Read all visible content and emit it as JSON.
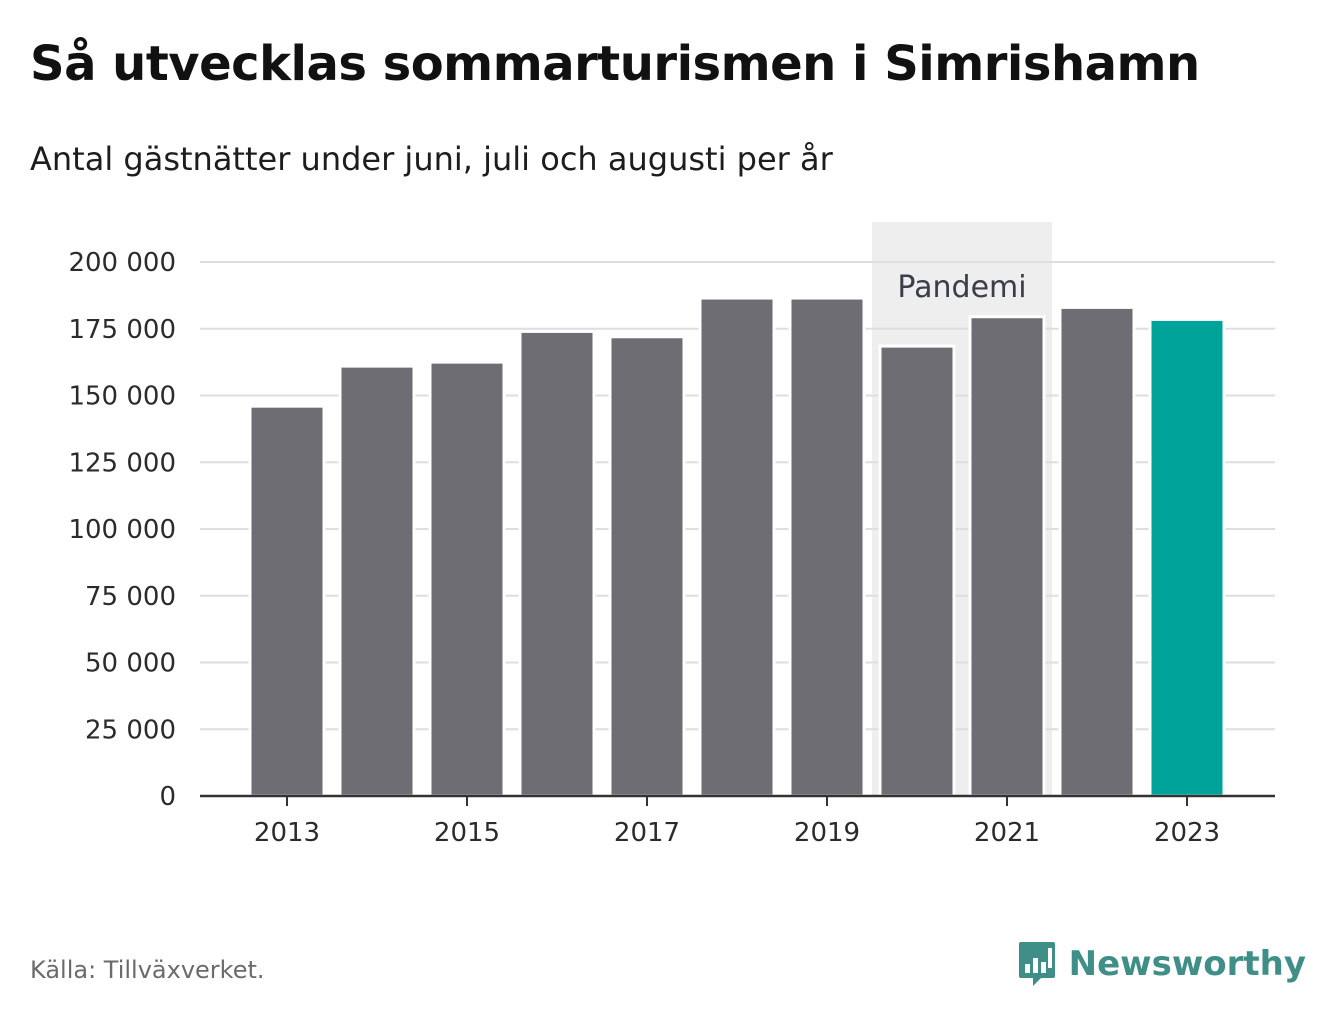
{
  "title": "Så utvecklas sommarturismen i Simrishamn",
  "subtitle": "Antal gästnätter under juni, juli och augusti per år",
  "source": "Källa: Tillväxverket.",
  "brand": {
    "name": "Newsworthy",
    "icon": "bar-chart-speech-bubble-icon",
    "color": "#3f8e88"
  },
  "colors": {
    "bar": "#6e6d73",
    "highlight": "#00a39a",
    "band": "#eeeeee",
    "grid": "#dedede",
    "axis": "#333333"
  },
  "chart_data": {
    "type": "bar",
    "categories": [
      "2013",
      "2014",
      "2015",
      "2016",
      "2017",
      "2018",
      "2019",
      "2020",
      "2021",
      "2022",
      "2023"
    ],
    "values": [
      146000,
      161000,
      162500,
      174000,
      172000,
      186500,
      186500,
      168500,
      179500,
      183000,
      178500
    ],
    "highlight_index": 10,
    "x_tick_labels": [
      "2013",
      "2015",
      "2017",
      "2019",
      "2021",
      "2023"
    ],
    "ylim": [
      0,
      200000
    ],
    "y_ticks": [
      0,
      25000,
      50000,
      75000,
      100000,
      125000,
      150000,
      175000,
      200000
    ],
    "y_tick_labels": [
      "0",
      "25 000",
      "50 000",
      "75 000",
      "100 000",
      "125 000",
      "150 000",
      "175 000",
      "200 000"
    ],
    "grid": true,
    "annotation": {
      "label": "Pandemi",
      "from": "2020",
      "to": "2021"
    }
  }
}
